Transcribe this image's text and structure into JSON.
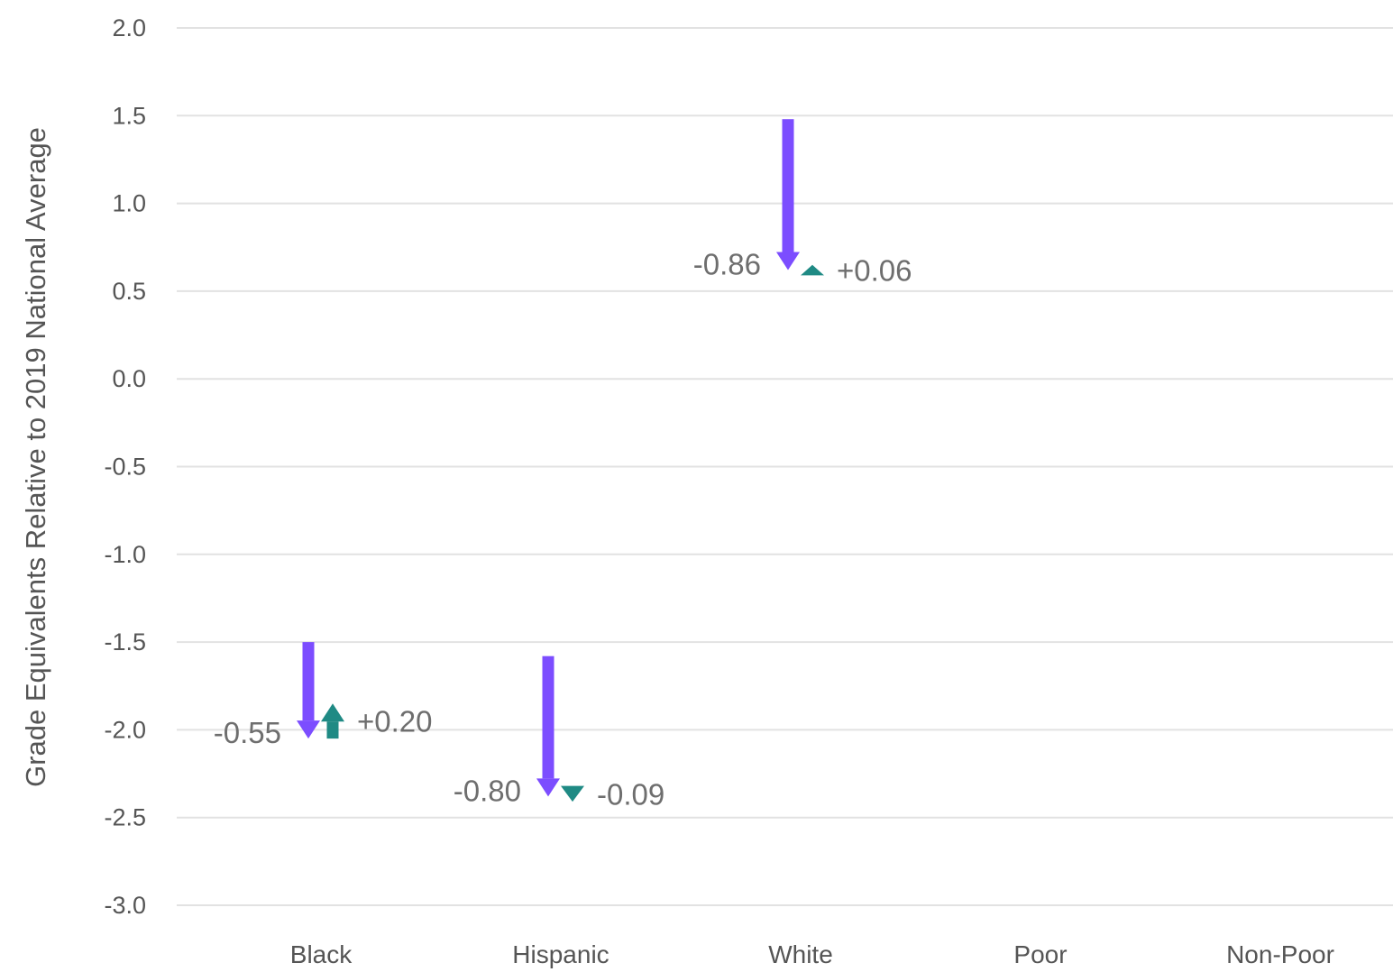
{
  "chart_data": {
    "type": "arrow",
    "ylabel": "Grade Equivalents Relative to 2019 National Average",
    "ylim": [
      -3.0,
      2.0
    ],
    "yticks": [
      "2.0",
      "1.5",
      "1.0",
      "0.5",
      "0.0",
      "-0.5",
      "-1.0",
      "-1.5",
      "-2.0",
      "-2.5",
      "-3.0"
    ],
    "ytick_values": [
      2.0,
      1.5,
      1.0,
      0.5,
      0.0,
      -0.5,
      -1.0,
      -1.5,
      -2.0,
      -2.5,
      -3.0
    ],
    "categories": [
      "Black",
      "Hispanic",
      "White",
      "Poor",
      "Non-Poor"
    ],
    "grid": true,
    "colors": {
      "decline": "#7c4dff",
      "change": "#1f8a84"
    },
    "series": [
      {
        "values": [
          {
            "category": "Black",
            "start": -1.5,
            "end": -2.05,
            "label": "-0.55"
          },
          {
            "category": "Hispanic",
            "start": -1.58,
            "end": -2.38,
            "label": "-0.80"
          },
          {
            "category": "White",
            "start": 1.48,
            "end": 0.62,
            "label": "-0.86"
          }
        ]
      },
      {
        "values": [
          {
            "category": "Black",
            "start": -2.05,
            "end": -1.85,
            "label": "+0.20"
          },
          {
            "category": "Hispanic",
            "start": -2.32,
            "end": -2.41,
            "label": "-0.09"
          },
          {
            "category": "White",
            "start": 0.59,
            "end": 0.65,
            "label": "+0.06"
          }
        ]
      }
    ]
  }
}
